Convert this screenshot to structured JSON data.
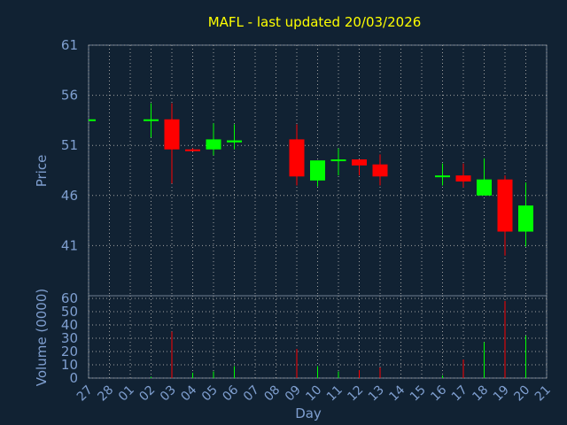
{
  "title": "MAFL - last updated 20/03/2026",
  "colors": {
    "background": "#112233",
    "title": "#ffff00",
    "axis_text": "#7f9fd0",
    "up": "#00ff00",
    "down": "#ff0000"
  },
  "chart_data": [
    {
      "type": "candlestick",
      "title": "MAFL - last updated 20/03/2026",
      "ylabel": "Price",
      "xlabel": "",
      "ylim": [
        36,
        61
      ],
      "yticks": [
        61,
        56,
        51,
        46,
        41
      ],
      "grid": true,
      "categories": [
        "27",
        "28",
        "01",
        "02",
        "03",
        "04",
        "05",
        "06",
        "07",
        "08",
        "09",
        "10",
        "11",
        "12",
        "13",
        "14",
        "15",
        "16",
        "17",
        "18",
        "19",
        "20",
        "21"
      ],
      "candles": [
        {
          "day": "27",
          "open": 53.6,
          "high": 53.6,
          "low": 53.6,
          "close": 53.6
        },
        {
          "day": "02",
          "open": 53.6,
          "high": 55.2,
          "low": 51.8,
          "close": 53.6
        },
        {
          "day": "03",
          "open": 53.6,
          "high": 55.2,
          "low": 47.2,
          "close": 50.6
        },
        {
          "day": "04",
          "open": 50.6,
          "high": 50.7,
          "low": 50.4,
          "close": 50.5
        },
        {
          "day": "05",
          "open": 50.6,
          "high": 53.2,
          "low": 50.0,
          "close": 51.6
        },
        {
          "day": "06",
          "open": 51.3,
          "high": 53.1,
          "low": 50.6,
          "close": 51.5
        },
        {
          "day": "09",
          "open": 51.6,
          "high": 53.1,
          "low": 47.0,
          "close": 47.9
        },
        {
          "day": "10",
          "open": 47.5,
          "high": 49.5,
          "low": 46.9,
          "close": 49.5
        },
        {
          "day": "11",
          "open": 49.5,
          "high": 50.7,
          "low": 48.0,
          "close": 49.6
        },
        {
          "day": "12",
          "open": 49.6,
          "high": 49.6,
          "low": 48.0,
          "close": 49.0
        },
        {
          "day": "13",
          "open": 49.1,
          "high": 50.1,
          "low": 47.0,
          "close": 47.9
        },
        {
          "day": "16",
          "open": 47.9,
          "high": 49.2,
          "low": 47.0,
          "close": 48.0
        },
        {
          "day": "17",
          "open": 48.0,
          "high": 49.2,
          "low": 46.8,
          "close": 47.4
        },
        {
          "day": "18",
          "open": 46.0,
          "high": 49.7,
          "low": 46.0,
          "close": 47.6
        },
        {
          "day": "19",
          "open": 47.6,
          "high": 48.0,
          "low": 40.0,
          "close": 42.4
        },
        {
          "day": "20",
          "open": 42.4,
          "high": 47.3,
          "low": 40.9,
          "close": 45.0
        }
      ]
    },
    {
      "type": "bar",
      "xlabel": "Day",
      "ylabel": "Volume (0000)",
      "ylim": [
        0,
        60
      ],
      "yticks": [
        60,
        50,
        40,
        30,
        20,
        10,
        0
      ],
      "grid": true,
      "categories": [
        "27",
        "28",
        "01",
        "02",
        "03",
        "04",
        "05",
        "06",
        "07",
        "08",
        "09",
        "10",
        "11",
        "12",
        "13",
        "14",
        "15",
        "16",
        "17",
        "18",
        "19",
        "20",
        "21"
      ],
      "bars": [
        {
          "day": "02",
          "value": 1,
          "direction": "up"
        },
        {
          "day": "03",
          "value": 35,
          "direction": "down"
        },
        {
          "day": "04",
          "value": 4,
          "direction": "up"
        },
        {
          "day": "05",
          "value": 5,
          "direction": "up"
        },
        {
          "day": "06",
          "value": 9,
          "direction": "up"
        },
        {
          "day": "09",
          "value": 22,
          "direction": "down"
        },
        {
          "day": "10",
          "value": 9,
          "direction": "up"
        },
        {
          "day": "11",
          "value": 5,
          "direction": "up"
        },
        {
          "day": "12",
          "value": 6,
          "direction": "down"
        },
        {
          "day": "13",
          "value": 8,
          "direction": "down"
        },
        {
          "day": "16",
          "value": 2,
          "direction": "up"
        },
        {
          "day": "17",
          "value": 14,
          "direction": "down"
        },
        {
          "day": "18",
          "value": 27,
          "direction": "up"
        },
        {
          "day": "19",
          "value": 58,
          "direction": "down"
        },
        {
          "day": "20",
          "value": 32,
          "direction": "up"
        }
      ]
    }
  ]
}
